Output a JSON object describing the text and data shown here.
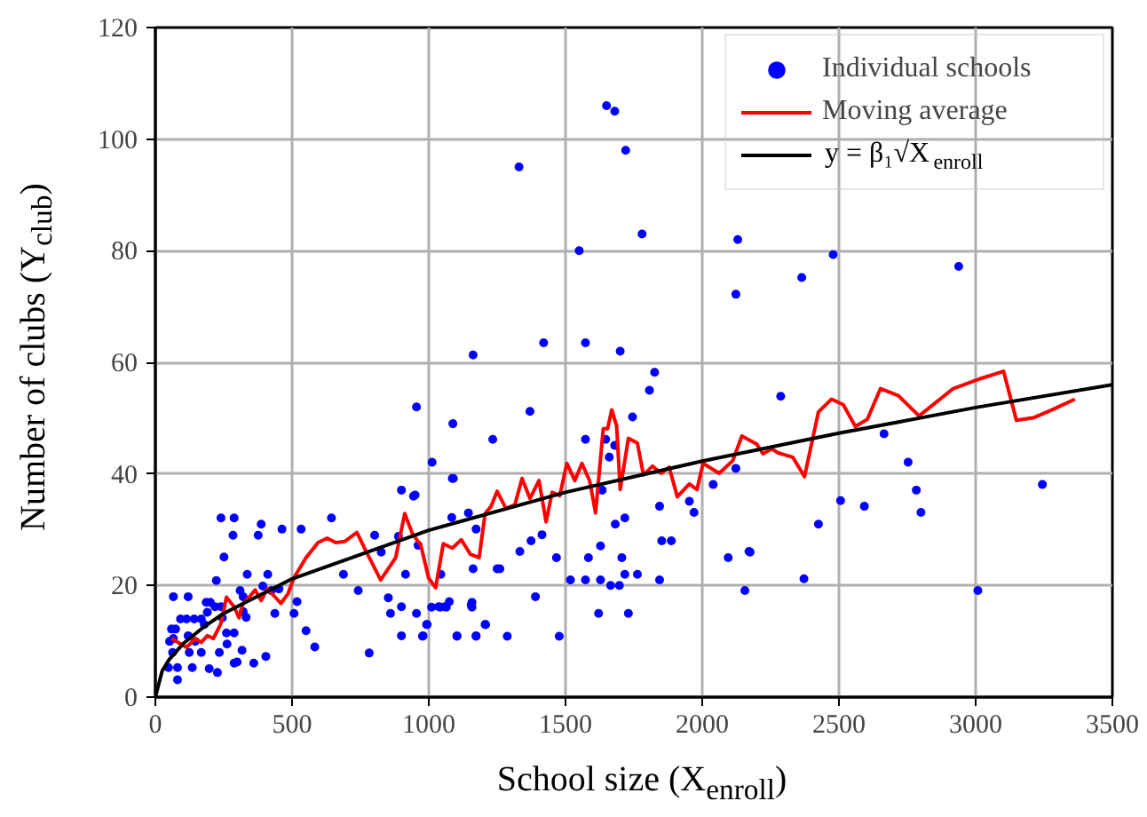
{
  "chart_data": {
    "type": "scatter",
    "xlabel": "School size (X$_{enroll}$)",
    "ylabel": "Number of clubs (Y$_{club}$)",
    "xlim": [
      0,
      3500
    ],
    "ylim": [
      0,
      120
    ],
    "xticks": [
      0,
      500,
      1000,
      1500,
      2000,
      2500,
      3000,
      3500
    ],
    "yticks": [
      0,
      20,
      40,
      60,
      80,
      100,
      120
    ],
    "grid": true,
    "legend": "top right",
    "series": [
      {
        "name": "Individual schools",
        "marker": "circle",
        "color": "#0000ff",
        "x": [
          1162,
          1420,
          1573,
          1700,
          1826,
          1807,
          2123,
          1370,
          1745,
          1088,
          1234,
          1573,
          1647,
          1680,
          1012,
          1660,
          1086,
          944,
          1634,
          1844,
          1953,
          1970,
          2040,
          2123,
          1084,
          1145,
          1173,
          961,
          1374,
          1414,
          1717,
          1682,
          1852,
          1887,
          1628,
          1333,
          1584,
          1706,
          1467,
          2095,
          2171,
          1162,
          1250,
          1044,
          1518,
          1573,
          1628,
          1717,
          1763,
          1844,
          1665,
          1697,
          2156,
          1075,
          1010,
          1042,
          1064,
          1158,
          1158,
          955,
          1390,
          1621,
          1730,
          994,
          1206,
          977,
          1103,
          1173,
          1287,
          1477,
          955,
          240,
          288,
          387,
          284,
          376,
          463,
          533,
          644,
          251,
          802,
          826,
          900,
          950,
          889,
          915,
          852,
          742,
          688,
          336,
          411,
          223,
          66,
          120,
          186,
          201,
          310,
          321,
          393,
          424,
          452,
          518,
          507,
          437,
          551,
          583,
          782,
          900,
          860,
          900,
          979,
          992,
          1058,
          1036,
          1155,
          1103,
          1173,
          1208,
          1090,
          92,
          114,
          142,
          168,
          179,
          74,
          120,
          146,
          52,
          63,
          124,
          168,
          234,
          81,
          48,
          81,
          135,
          197,
          227,
          288,
          360,
          404,
          260,
          288,
          262,
          317,
          299,
          66,
          59,
          218,
          240,
          190,
          245,
          321,
          332,
          1260,
          1650,
          1680,
          1330,
          1720,
          1780,
          1550,
          2130,
          2364,
          2479,
          2938,
          2287,
          2665,
          2753,
          2783,
          2800,
          2506,
          2593,
          2425,
          3244,
          2372,
          3008,
          2175
        ],
        "values": [
          61.3,
          63.5,
          63.5,
          62,
          58.2,
          55,
          72.2,
          51.2,
          50.2,
          49,
          46.2,
          46.2,
          46.2,
          45.1,
          42.1,
          43,
          39.2,
          36,
          37.1,
          34.2,
          35.1,
          33.1,
          38.1,
          41,
          32.2,
          33,
          30.1,
          27.2,
          28,
          29.1,
          32.1,
          31,
          28,
          28,
          27.1,
          26.1,
          25,
          25,
          25,
          25,
          26.1,
          23,
          23,
          22,
          21,
          21,
          21,
          22,
          22,
          21,
          20,
          20,
          19.1,
          17.1,
          16.1,
          16.1,
          16.1,
          17,
          16.1,
          15,
          18,
          15,
          15,
          13,
          13,
          10.9,
          10.9,
          10.9,
          10.9,
          10.9,
          52,
          32.1,
          32.1,
          31,
          29,
          29,
          30.1,
          30.1,
          32.1,
          25.1,
          29,
          26,
          37.1,
          36.2,
          28.8,
          22,
          17.8,
          19.1,
          22,
          22,
          22,
          20.9,
          18,
          18,
          17,
          17,
          19.1,
          18,
          19.9,
          19.1,
          19.4,
          17.1,
          15,
          15,
          11.9,
          9,
          7.9,
          16.2,
          15,
          11,
          11,
          13,
          16.2,
          16.2,
          16.5,
          11,
          11,
          13,
          39.2,
          14,
          14,
          14,
          14,
          13,
          12.2,
          11,
          10,
          10,
          8,
          8,
          8,
          8,
          5.3,
          5.3,
          3.1,
          5.3,
          5.1,
          4.4,
          6.1,
          6.1,
          7.3,
          11.5,
          11.5,
          9.5,
          8.4,
          6.3,
          10.5,
          12.2,
          16.2,
          16.2,
          15.2,
          14.2,
          15.3,
          14.3,
          23,
          106,
          105,
          95,
          98,
          83,
          80,
          82,
          75.2,
          79.3,
          77.2,
          53.9,
          47.2,
          42.1,
          37.1,
          33.1,
          35.2,
          34.2,
          31,
          38.1,
          21.2,
          19.1,
          26
        ]
      },
      {
        "name": "Moving average",
        "type": "line",
        "marker": "none",
        "line_style": "solid",
        "color": "#ff0000",
        "x": [
          59,
          114,
          146,
          168,
          190,
          212,
          240,
          260,
          288,
          306,
          321,
          343,
          365,
          387,
          409,
          431,
          459,
          485,
          507,
          551,
          595,
          628,
          660,
          693,
          737,
          770,
          824,
          879,
          912,
          940,
          971,
          999,
          1025,
          1053,
          1086,
          1119,
          1152,
          1184,
          1206,
          1228,
          1250,
          1282,
          1315,
          1341,
          1370,
          1403,
          1429,
          1451,
          1479,
          1505,
          1534,
          1560,
          1588,
          1610,
          1638,
          1654,
          1669,
          1687,
          1700,
          1730,
          1763,
          1785,
          1818,
          1850,
          1879,
          1909,
          1953,
          1981,
          2003,
          2062,
          2112,
          2145,
          2200,
          2222,
          2254,
          2276,
          2331,
          2374,
          2425,
          2473,
          2516,
          2560,
          2604,
          2652,
          2718,
          2793,
          2918,
          3019,
          3102,
          3149,
          3214,
          3280,
          3363
        ],
        "values": [
          10.5,
          8.9,
          10.5,
          9.8,
          11,
          10.5,
          13.2,
          17.9,
          16.2,
          14.2,
          16.8,
          17.9,
          19.2,
          17.3,
          19.4,
          18.3,
          16.8,
          18.5,
          21.4,
          25,
          27.7,
          28.5,
          27.7,
          27.9,
          29.5,
          26.2,
          21,
          25,
          32.9,
          29.3,
          27.2,
          21.4,
          19.6,
          27.5,
          26.7,
          28.2,
          25.6,
          25,
          32.9,
          34.2,
          36.9,
          33.8,
          34.5,
          39.2,
          35.6,
          38.8,
          31.4,
          36.7,
          36.1,
          41.9,
          38.8,
          41.9,
          38.8,
          33,
          48.1,
          48.1,
          51.5,
          48.6,
          37.2,
          46.4,
          45.5,
          39.8,
          41.4,
          40.1,
          41.2,
          35.9,
          38.2,
          37.2,
          41.9,
          40.1,
          42.4,
          46.8,
          45.3,
          43.6,
          44.5,
          43.8,
          43,
          39.5,
          51.1,
          53.4,
          52.4,
          48.5,
          49.8,
          55.3,
          54,
          50.4,
          55.3,
          57.1,
          58.4,
          49.6,
          50.1,
          51.5,
          53.4
        ]
      },
      {
        "name": "y = β₁√X$_{enroll}$",
        "type": "line",
        "marker": "none",
        "line_style": "solid",
        "color": "#000000",
        "x": [
          0,
          25,
          50,
          100,
          175,
          250,
          500,
          1000,
          1500,
          2000,
          2500,
          3000,
          3500
        ],
        "values": [
          0,
          4.7,
          6.7,
          9.5,
          12.5,
          15,
          21.2,
          29.9,
          36.7,
          42.3,
          47.3,
          51.9,
          56
        ]
      }
    ]
  }
}
